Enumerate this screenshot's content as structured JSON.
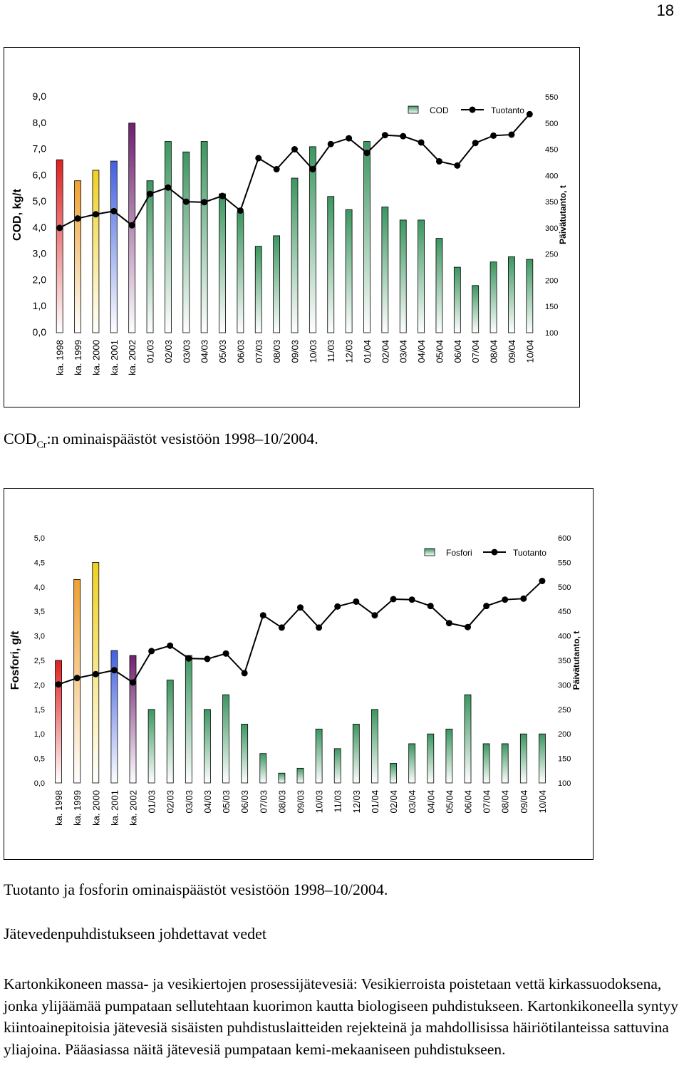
{
  "page_number": "18",
  "cod_caption": {
    "prefix": "COD",
    "subscript": "Cr",
    "suffix": ":n ominaispäästöt vesistöön 1998–10/2004."
  },
  "phosphorus_caption": "Tuotanto ja fosforin ominaispäästöt vesistöön 1998–10/2004.",
  "section_heading": "Jätevedenpuhdistukseen johdettavat vedet",
  "body_text": "Kartonkikoneen massa- ja vesikiertojen prosessijätevesiä: Vesikierroista poistetaan vettä kirkassuodoksena, jonka ylijäämää pumpataan sellutehtaan kuorimon kautta biologiseen puhdistukseen. Kartonkikoneella syntyy kiintoainepitoisia jätevesiä sisäisten puhdistus­laitteiden rejekteinä ja mahdollisissa häiriötilanteissa sattuvina yliajoina. Pääasiassa näitä jätevesiä pumpataan kemi-mekaaniseen puhdistukseen.",
  "chart_data": [
    {
      "type": "bar",
      "ylabel": "COD, kg/t",
      "y2label": "Päivätutanto, t",
      "ylim": [
        0,
        9
      ],
      "y2lim": [
        100,
        550
      ],
      "yticks": [
        "0,0",
        "1,0",
        "2,0",
        "3,0",
        "4,0",
        "5,0",
        "6,0",
        "7,0",
        "8,0",
        "9,0"
      ],
      "y2ticks": [
        "100",
        "150",
        "200",
        "250",
        "300",
        "350",
        "400",
        "450",
        "500",
        "550"
      ],
      "legend_position": "top-right",
      "grid": false,
      "categories": [
        "ka. 1998",
        "ka. 1999",
        "ka. 2000",
        "ka. 2001",
        "ka. 2002",
        "01/03",
        "02/03",
        "03/03",
        "04/03",
        "05/03",
        "06/03",
        "07/03",
        "08/03",
        "09/03",
        "10/03",
        "11/03",
        "12/03",
        "01/04",
        "02/04",
        "03/04",
        "04/04",
        "05/04",
        "06/04",
        "07/04",
        "08/04",
        "09/04",
        "10/04"
      ],
      "series": [
        {
          "name": "COD",
          "kind": "bar",
          "values": [
            6.6,
            5.8,
            6.2,
            6.55,
            8.0,
            5.8,
            7.3,
            6.9,
            7.3,
            5.3,
            4.6,
            3.3,
            3.7,
            5.9,
            7.1,
            5.2,
            4.7,
            7.3,
            4.8,
            4.3,
            4.3,
            3.6,
            2.5,
            1.8,
            2.7,
            2.9,
            2.8
          ],
          "bar_colors": [
            "#e02020",
            "#f0a030",
            "#f0d020",
            "#4060e0",
            "#702070"
          ],
          "default_color": "#3c9660"
        },
        {
          "name": "Tuotanto",
          "kind": "line",
          "axis": "right",
          "values": [
            300,
            318,
            326,
            332,
            305,
            365,
            377,
            350,
            349,
            361,
            333,
            433,
            412,
            450,
            412,
            460,
            471,
            443,
            477,
            475,
            463,
            427,
            419,
            462,
            476,
            478,
            517
          ]
        }
      ]
    },
    {
      "type": "bar",
      "ylabel": "Fosfori, g/t",
      "y2label": "Päivätutanto, t",
      "ylim": [
        0,
        5
      ],
      "y2lim": [
        100,
        600
      ],
      "yticks": [
        "0,0",
        "0,5",
        "1,0",
        "1,5",
        "2,0",
        "2,5",
        "3,0",
        "3,5",
        "4,0",
        "4,5",
        "5,0"
      ],
      "y2ticks": [
        "100",
        "150",
        "200",
        "250",
        "300",
        "350",
        "400",
        "450",
        "500",
        "550",
        "600"
      ],
      "legend_position": "top-right",
      "grid": false,
      "categories": [
        "ka. 1998",
        "ka. 1999",
        "ka. 2000",
        "ka. 2001",
        "ka. 2002",
        "01/03",
        "02/03",
        "03/03",
        "04/03",
        "05/03",
        "06/03",
        "07/03",
        "08/03",
        "09/03",
        "10/03",
        "11/03",
        "12/03",
        "01/04",
        "02/04",
        "03/04",
        "04/04",
        "05/04",
        "06/04",
        "07/04",
        "08/04",
        "09/04",
        "10/04"
      ],
      "series": [
        {
          "name": "Fosfori",
          "kind": "bar",
          "values": [
            2.5,
            4.15,
            4.5,
            2.7,
            2.6,
            1.5,
            2.1,
            2.6,
            1.5,
            1.8,
            1.2,
            0.6,
            0.2,
            0.3,
            1.1,
            0.7,
            1.2,
            1.5,
            0.4,
            0.8,
            1.0,
            1.1,
            1.8,
            0.8,
            0.8,
            1.0,
            1.0
          ],
          "bar_colors": [
            "#e02020",
            "#f0a030",
            "#f0d020",
            "#4060e0",
            "#702070"
          ],
          "default_color": "#3c9660"
        },
        {
          "name": "Tuotanto",
          "kind": "line",
          "axis": "right",
          "values": [
            301,
            314,
            322,
            330,
            305,
            369,
            380,
            354,
            353,
            364,
            324,
            442,
            417,
            458,
            417,
            460,
            470,
            442,
            475,
            474,
            461,
            426,
            418,
            461,
            474,
            476,
            512
          ]
        }
      ]
    }
  ]
}
